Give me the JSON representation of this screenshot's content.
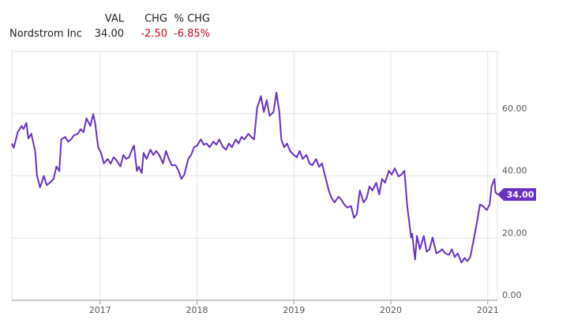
{
  "header": {
    "columns": [
      "VAL",
      "CHG",
      "% CHG"
    ],
    "rows": [
      [
        "Nordstrom Inc",
        "34.00",
        "-2.50",
        "-6.85%"
      ]
    ]
  },
  "chart_data": {
    "type": "line",
    "series": [
      {
        "name": "Nordstrom Inc",
        "color": "#6930c3",
        "x": [
          2016.09,
          2016.11,
          2016.15,
          2016.19,
          2016.21,
          2016.24,
          2016.26,
          2016.29,
          2016.33,
          2016.35,
          2016.38,
          2016.4,
          2016.42,
          2016.45,
          2016.49,
          2016.52,
          2016.55,
          2016.58,
          2016.6,
          2016.64,
          2016.67,
          2016.7,
          2016.73,
          2016.77,
          2016.8,
          2016.83,
          2016.86,
          2016.9,
          2016.93,
          2016.95,
          2016.98,
          2017.01,
          2017.04,
          2017.08,
          2017.11,
          2017.14,
          2017.17,
          2017.21,
          2017.24,
          2017.27,
          2017.3,
          2017.34,
          2017.35,
          2017.38,
          2017.4,
          2017.43,
          2017.45,
          2017.48,
          2017.52,
          2017.55,
          2017.58,
          2017.61,
          2017.65,
          2017.68,
          2017.71,
          2017.74,
          2017.78,
          2017.81,
          2017.84,
          2017.87,
          2017.91,
          2017.94,
          2017.97,
          2018.0,
          2018.04,
          2018.07,
          2018.1,
          2018.13,
          2018.17,
          2018.2,
          2018.23,
          2018.27,
          2018.3,
          2018.33,
          2018.36,
          2018.4,
          2018.43,
          2018.46,
          2018.49,
          2018.53,
          2018.56,
          2018.59,
          2018.62,
          2018.66,
          2018.69,
          2018.72,
          2018.75,
          2018.79,
          2018.82,
          2018.85,
          2018.87,
          2018.9,
          2018.93,
          2018.96,
          2019.0,
          2019.03,
          2019.06,
          2019.09,
          2019.13,
          2019.16,
          2019.19,
          2019.23,
          2019.26,
          2019.29,
          2019.33,
          2019.36,
          2019.39,
          2019.42,
          2019.46,
          2019.49,
          2019.52,
          2019.55,
          2019.59,
          2019.62,
          2019.65,
          2019.68,
          2019.72,
          2019.75,
          2019.78,
          2019.81,
          2019.85,
          2019.88,
          2019.91,
          2019.94,
          2019.98,
          2020.01,
          2020.04,
          2020.08,
          2020.11,
          2020.14,
          2020.17,
          2020.21,
          2020.22,
          2020.25,
          2020.27,
          2020.3,
          2020.34,
          2020.37,
          2020.4,
          2020.43,
          2020.47,
          2020.5,
          2020.53,
          2020.56,
          2020.6,
          2020.63,
          2020.66,
          2020.69,
          2020.73,
          2020.76,
          2020.79,
          2020.82,
          2020.86,
          2020.89,
          2020.92,
          2020.95,
          2020.99,
          2021.02,
          2021.04,
          2021.07,
          2021.08,
          2021.1
        ],
        "values": [
          50.4,
          49,
          54,
          56,
          55,
          57,
          52,
          53.5,
          48,
          40,
          36.3,
          38,
          40,
          37,
          38,
          39,
          43,
          41.5,
          51.7,
          52.5,
          51,
          51.7,
          53,
          53.5,
          55,
          54,
          58.5,
          56,
          59.8,
          56.7,
          49.2,
          47.4,
          44,
          45.4,
          43.9,
          46,
          45,
          43,
          46.7,
          45.4,
          46,
          49.2,
          49.7,
          41.6,
          42.9,
          40.9,
          47.4,
          45.4,
          48.4,
          46.7,
          48,
          46.7,
          44,
          48,
          45.4,
          43.4,
          43.4,
          41.6,
          39,
          40.4,
          45.4,
          46.7,
          49.2,
          49.7,
          51.7,
          50,
          50.4,
          49.2,
          51,
          50,
          51.7,
          49.2,
          48.4,
          50.4,
          49.2,
          51.7,
          50.4,
          52.5,
          51.7,
          53.5,
          52.5,
          51.7,
          61.8,
          65.6,
          60.5,
          64.3,
          59.3,
          60.5,
          66.8,
          60.5,
          51.7,
          49.2,
          50.4,
          48,
          46.7,
          46,
          48,
          45.4,
          46.7,
          44,
          43.4,
          45.4,
          42.9,
          44,
          39,
          35.3,
          32.8,
          31.5,
          33.3,
          32.3,
          30.8,
          29.8,
          30.3,
          26.5,
          27.7,
          35.3,
          31.5,
          32.8,
          36.6,
          35.3,
          37.8,
          34,
          39,
          37.8,
          41.6,
          40.4,
          42.4,
          39.8,
          40.4,
          41.6,
          30.3,
          20.2,
          21.4,
          13.1,
          20.7,
          16.4,
          20.7,
          15.6,
          16.4,
          20.2,
          15.1,
          15.6,
          16.4,
          15.1,
          14.6,
          16.4,
          13.9,
          15.1,
          12.1,
          13.6,
          12.6,
          13.9,
          20.2,
          25.2,
          30.8,
          30.3,
          29,
          30.8,
          36.6,
          39,
          34.8,
          34
        ]
      }
    ],
    "current": {
      "value": 34,
      "label": "34.00"
    },
    "xlim": [
      2016.09,
      2021.1
    ],
    "xticks": [
      2017,
      2018,
      2019,
      2020,
      2021
    ],
    "ylim": [
      0,
      80
    ],
    "yticks": [
      {
        "value": 0,
        "label": "0.00"
      },
      {
        "value": 20,
        "label": "20.00"
      },
      {
        "value": 40,
        "label": "40.00"
      },
      {
        "value": 60,
        "label": "60.00"
      }
    ],
    "grid": true
  }
}
